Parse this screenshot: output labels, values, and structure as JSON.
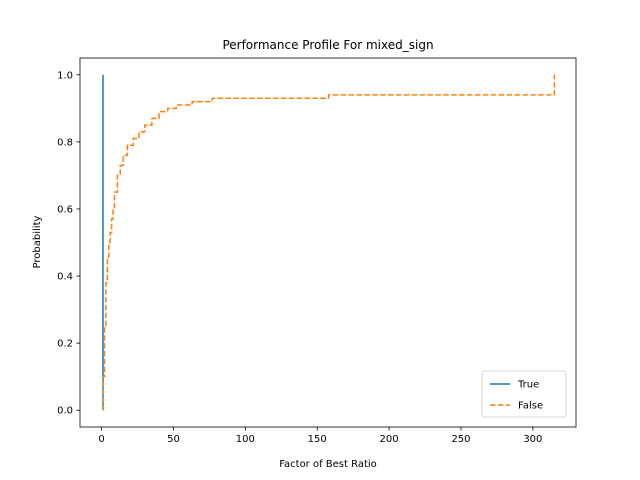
{
  "chart_data": {
    "type": "line",
    "title": "Performance Profile For mixed_sign",
    "xlabel": "Factor of Best Ratio",
    "ylabel": "Probability",
    "xlim": [
      -15,
      330
    ],
    "ylim": [
      -0.05,
      1.05
    ],
    "xticks": [
      0,
      50,
      100,
      150,
      200,
      250,
      300
    ],
    "yticks": [
      0.0,
      0.2,
      0.4,
      0.6,
      0.8,
      1.0
    ],
    "xtick_labels": [
      "0",
      "50",
      "100",
      "150",
      "200",
      "250",
      "300"
    ],
    "ytick_labels": [
      "0.0",
      "0.2",
      "0.4",
      "0.6",
      "0.8",
      "1.0"
    ],
    "grid": false,
    "legend_position": "lower-right",
    "series": [
      {
        "name": "True",
        "color": "#1f77b4",
        "style": "solid",
        "x": [
          1,
          1
        ],
        "y": [
          0.0,
          1.0
        ]
      },
      {
        "name": "False",
        "color": "#ff7f0e",
        "style": "dashed",
        "x": [
          1,
          1,
          2,
          2,
          3,
          3,
          4,
          4,
          5,
          5,
          6,
          6,
          7,
          7,
          8,
          8,
          9,
          9,
          11,
          11,
          13,
          13,
          15,
          15,
          18,
          18,
          22,
          22,
          26,
          26,
          30,
          30,
          35,
          35,
          40,
          40,
          46,
          46,
          52,
          52,
          63,
          63,
          77,
          77,
          158,
          158,
          315,
          315
        ],
        "y": [
          0.0,
          0.1,
          0.1,
          0.25,
          0.25,
          0.38,
          0.38,
          0.45,
          0.45,
          0.5,
          0.5,
          0.53,
          0.53,
          0.57,
          0.57,
          0.6,
          0.6,
          0.65,
          0.65,
          0.7,
          0.7,
          0.73,
          0.73,
          0.76,
          0.76,
          0.79,
          0.79,
          0.81,
          0.81,
          0.83,
          0.83,
          0.85,
          0.85,
          0.87,
          0.87,
          0.89,
          0.89,
          0.9,
          0.9,
          0.91,
          0.91,
          0.92,
          0.92,
          0.93,
          0.93,
          0.94,
          0.94,
          1.0
        ]
      }
    ]
  }
}
